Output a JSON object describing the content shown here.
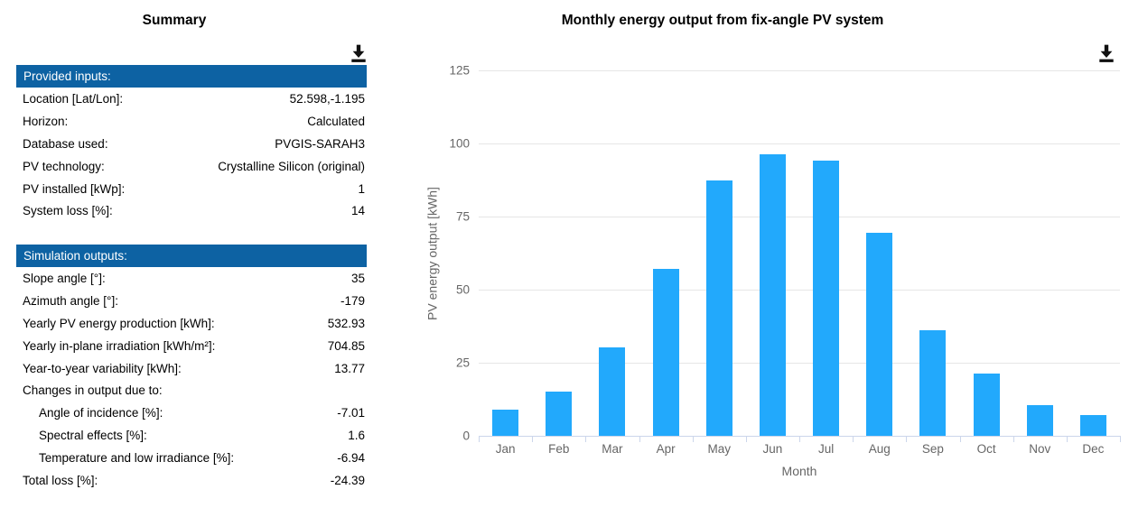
{
  "summary": {
    "title": "Summary",
    "provided_inputs": {
      "header": "Provided inputs:",
      "rows": [
        {
          "label": "Location [Lat/Lon]:",
          "value": "52.598,-1.195"
        },
        {
          "label": "Horizon:",
          "value": "Calculated"
        },
        {
          "label": "Database used:",
          "value": "PVGIS-SARAH3"
        },
        {
          "label": "PV technology:",
          "value": "Crystalline Silicon (original)"
        },
        {
          "label": "PV installed [kWp]:",
          "value": "1"
        },
        {
          "label": "System loss [%]:",
          "value": "14"
        }
      ]
    },
    "simulation_outputs": {
      "header": "Simulation outputs:",
      "rows": [
        {
          "label": "Slope angle [°]:",
          "value": "35"
        },
        {
          "label": "Azimuth angle [°]:",
          "value": "-179"
        },
        {
          "label": "Yearly PV energy production [kWh]:",
          "value": "532.93"
        },
        {
          "label": "Yearly in-plane irradiation [kWh/m²]:",
          "value": "704.85"
        },
        {
          "label": "Year-to-year variability [kWh]:",
          "value": "13.77"
        },
        {
          "label": "Changes in output due to:",
          "value": ""
        },
        {
          "label": "Angle of incidence [%]:",
          "value": "-7.01",
          "indent": true
        },
        {
          "label": "Spectral effects [%]:",
          "value": "1.6",
          "indent": true
        },
        {
          "label": "Temperature and low irradiance [%]:",
          "value": "-6.94",
          "indent": true
        },
        {
          "label": "Total loss [%]:",
          "value": "-24.39"
        }
      ]
    }
  },
  "chart_data": {
    "type": "bar",
    "title": "Monthly energy output from fix-angle PV system",
    "categories": [
      "Jan",
      "Feb",
      "Mar",
      "Apr",
      "May",
      "Jun",
      "Jul",
      "Aug",
      "Sep",
      "Oct",
      "Nov",
      "Dec"
    ],
    "values": [
      8.9,
      15.0,
      30.1,
      57.0,
      87.2,
      96.2,
      94.1,
      69.3,
      36.0,
      21.2,
      10.5,
      7.1
    ],
    "xlabel": "Month",
    "ylabel": "PV energy output [kWh]",
    "ylim": [
      0,
      130
    ],
    "yticks": [
      0,
      25,
      50,
      75,
      100,
      125
    ],
    "grid": true,
    "legend": "none",
    "bar_color": "#22a9fc"
  },
  "icons": {
    "download": "download-icon"
  },
  "colors": {
    "section_header_bg": "#0d62a3",
    "bar": "#22a9fc",
    "gridline": "#e6e6e6",
    "axis_line": "#ccd6eb",
    "chart_text": "#666666"
  }
}
